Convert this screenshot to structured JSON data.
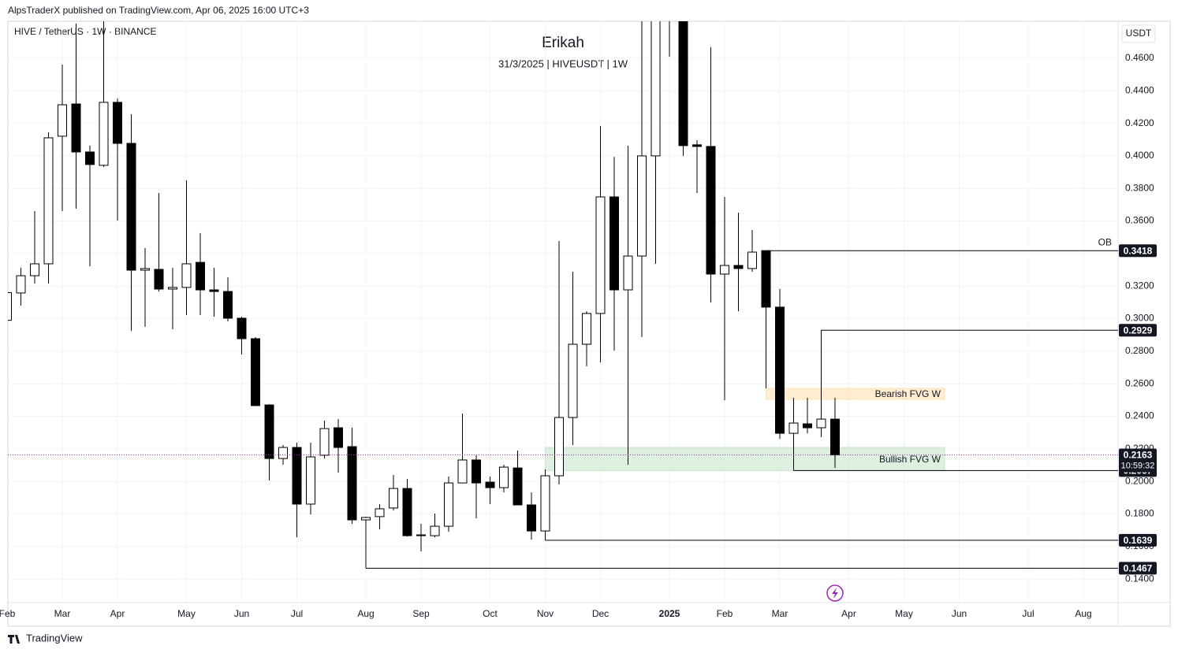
{
  "header": {
    "published": "AlpsTraderX published on TradingView.com, Apr 06, 2025 16:00 UTC+3",
    "brand": "TradingView"
  },
  "chart_data": {
    "type": "candlestick",
    "title": "Erikah",
    "subtitle": "31/3/2025 | HIVEUSDT | 1W",
    "symbol": "HIVE / TetherUS · 1W · BINANCE",
    "currency": "USDT",
    "categories": [
      "Feb",
      null,
      null,
      null,
      "Mar",
      null,
      null,
      null,
      "Apr",
      null,
      null,
      null,
      null,
      "May",
      null,
      null,
      null,
      "Jun",
      null,
      null,
      null,
      "Jul",
      null,
      null,
      null,
      null,
      "Aug",
      null,
      null,
      null,
      "Sep",
      null,
      null,
      null,
      null,
      "Oct",
      null,
      null,
      null,
      "Nov",
      null,
      null,
      null,
      "Dec",
      null,
      null,
      null,
      null,
      "2025",
      null,
      null,
      null,
      "Feb",
      null,
      null,
      null,
      "Mar",
      null,
      null,
      null,
      null,
      "Apr",
      null,
      null,
      null,
      "May",
      null,
      null,
      null,
      "Jun",
      null,
      null,
      null,
      null,
      "Jul",
      null,
      null,
      null,
      "Aug",
      null,
      null
    ],
    "open": [
      0.299,
      0.3158,
      0.3264,
      0.3337,
      0.4121,
      0.4319,
      0.4024,
      0.3942,
      0.4329,
      0.4077,
      0.3298,
      0.3303,
      0.3182,
      0.3192,
      0.3346,
      0.3177,
      0.3167,
      0.3003,
      0.2877,
      0.247,
      0.2141,
      0.2209,
      0.1861,
      0.2161,
      0.233,
      0.2214,
      0.1764,
      0.1784,
      0.1837,
      0.1957,
      0.1672,
      0.1667,
      0.1725,
      0.1991,
      0.2132,
      0.1996,
      0.1962,
      0.2083,
      0.1856,
      0.1696,
      0.2035,
      0.2393,
      0.2843,
      0.3032,
      0.3748,
      0.3177,
      0.3385,
      0.4,
      0.54,
      0.5,
      0.4068,
      0.4058,
      0.3274,
      0.3327,
      0.3308,
      0.3418,
      0.3071,
      0.2296,
      0.2354,
      0.233,
      0.2383,
      null,
      null,
      null,
      null,
      null,
      null,
      null,
      null,
      null,
      null,
      null,
      null,
      null,
      null,
      null,
      null,
      null,
      null,
      null,
      null
    ],
    "high": [
      0.317,
      0.3313,
      0.3661,
      0.4145,
      0.4561,
      0.4813,
      0.4063,
      0.4886,
      0.4353,
      0.4256,
      0.3434,
      0.3772,
      0.3313,
      0.385,
      0.3526,
      0.3313,
      0.3254,
      0.3012,
      0.2887,
      0.2475,
      0.2224,
      0.2238,
      0.2238,
      0.2374,
      0.2383,
      0.233,
      0.1784,
      0.1861,
      0.204,
      0.2015,
      0.174,
      0.1803,
      0.203,
      0.2417,
      0.2161,
      0.203,
      0.2103,
      0.219,
      0.1933,
      0.2074,
      0.3477,
      0.3288,
      0.3046,
      0.4184,
      0.3994,
      0.4063,
      0.4837,
      0.55,
      0.6,
      0.52,
      0.4097,
      0.4668,
      0.3748,
      0.3651,
      0.3545,
      0.3418,
      0.3182,
      0.2514,
      0.2514,
      0.2929,
      0.2514,
      null,
      null,
      null,
      null,
      null,
      null,
      null,
      null,
      null,
      null,
      null,
      null,
      null,
      null,
      null,
      null,
      null,
      null,
      null,
      null
    ],
    "low": [
      0.297,
      0.308,
      0.3216,
      0.3216,
      0.3661,
      0.3676,
      0.3322,
      0.3932,
      0.3603,
      0.2925,
      0.295,
      0.3167,
      0.2935,
      0.3022,
      0.3022,
      0.3012,
      0.2983,
      0.278,
      0.2466,
      0.2006,
      0.2103,
      0.1657,
      0.1798,
      0.2141,
      0.2054,
      0.174,
      0.1467,
      0.1706,
      0.1822,
      0.1662,
      0.157,
      0.1657,
      0.1691,
      0.1991,
      0.1774,
      0.1861,
      0.1933,
      0.1856,
      0.1643,
      0.1639,
      0.1982,
      0.2224,
      0.2708,
      0.2732,
      0.2804,
      0.2103,
      0.2887,
      0.3337,
      0.461,
      0.4,
      0.3772,
      0.31,
      0.2499,
      0.3046,
      0.3288,
      0.2572,
      0.2262,
      0.2067,
      0.2296,
      0.2272,
      0.2083,
      null,
      null,
      null,
      null,
      null,
      null,
      null,
      null,
      null,
      null,
      null,
      null,
      null,
      null,
      null,
      null,
      null,
      null,
      null,
      null
    ],
    "close": [
      0.316,
      0.3264,
      0.3337,
      0.4111,
      0.4314,
      0.4024,
      0.3947,
      0.4329,
      0.4077,
      0.3298,
      0.3308,
      0.3182,
      0.3192,
      0.3337,
      0.3177,
      0.3167,
      0.3003,
      0.2877,
      0.2466,
      0.2141,
      0.2209,
      0.1861,
      0.2151,
      0.2325,
      0.2209,
      0.1764,
      0.1779,
      0.1832,
      0.1957,
      0.1667,
      0.1667,
      0.1725,
      0.1991,
      0.2132,
      0.1991,
      0.1962,
      0.2088,
      0.1856,
      0.1696,
      0.2035,
      0.2393,
      0.2843,
      0.3032,
      0.3748,
      0.3177,
      0.3385,
      0.4,
      0.5,
      0.5,
      0.4063,
      0.4058,
      0.3274,
      0.3327,
      0.3308,
      0.3409,
      0.3071,
      0.2296,
      0.2359,
      0.233,
      0.2383,
      0.2163,
      null,
      null,
      null,
      null,
      null,
      null,
      null,
      null,
      null,
      null,
      null,
      null,
      null,
      null,
      null,
      null,
      null,
      null,
      null,
      null
    ],
    "up_color": "#ffffff",
    "down_color": "#000000",
    "ylim": [
      0.1256,
      0.4827
    ],
    "yticks": [
      {
        "value": 0.46,
        "label": "0.4600"
      },
      {
        "value": 0.44,
        "label": "0.4400"
      },
      {
        "value": 0.42,
        "label": "0.4200"
      },
      {
        "value": 0.4,
        "label": "0.4000"
      },
      {
        "value": 0.38,
        "label": "0.3800"
      },
      {
        "value": 0.36,
        "label": "0.3600"
      },
      {
        "value": 0.34,
        "label": "0.3400"
      },
      {
        "value": 0.32,
        "label": "0.3200"
      },
      {
        "value": 0.3,
        "label": "0.3000"
      },
      {
        "value": 0.28,
        "label": "0.2800"
      },
      {
        "value": 0.26,
        "label": "0.2600"
      },
      {
        "value": 0.24,
        "label": "0.2400"
      },
      {
        "value": 0.22,
        "label": "0.2200"
      },
      {
        "value": 0.2,
        "label": "0.2000"
      },
      {
        "value": 0.18,
        "label": "0.1800"
      },
      {
        "value": 0.16,
        "label": "0.1600"
      },
      {
        "value": 0.14,
        "label": "0.1400"
      }
    ],
    "grid": true,
    "levels": [
      {
        "value": 0.3418,
        "label": "OB"
      },
      {
        "value": 0.2929
      },
      {
        "value": 0.2067
      },
      {
        "value": 0.1639
      },
      {
        "value": 0.1467
      }
    ],
    "zones": [
      {
        "label": "Bearish FVG W",
        "top": 0.2572,
        "bottom": 0.2504,
        "color": "#ffe0b2"
      },
      {
        "label": "Bullish FVG W",
        "top": 0.2209,
        "bottom": 0.2067,
        "color": "#c8e6c9"
      }
    ],
    "last": {
      "value": 0.2163,
      "countdown": "10:59:32",
      "color": "#9c27b0"
    }
  }
}
